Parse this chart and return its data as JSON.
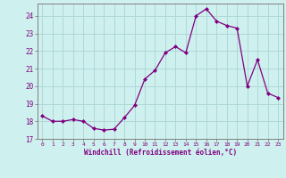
{
  "x": [
    0,
    1,
    2,
    3,
    4,
    5,
    6,
    7,
    8,
    9,
    10,
    11,
    12,
    13,
    14,
    15,
    16,
    17,
    18,
    19,
    20,
    21,
    22,
    23
  ],
  "y": [
    18.3,
    18.0,
    18.0,
    18.1,
    18.0,
    17.6,
    17.5,
    17.55,
    18.2,
    18.9,
    20.4,
    20.9,
    21.9,
    22.25,
    21.9,
    24.0,
    24.4,
    23.7,
    23.45,
    23.3,
    20.0,
    21.5,
    19.6,
    19.35
  ],
  "line_color": "#800080",
  "marker": "D",
  "markersize": 2.0,
  "linewidth": 0.9,
  "xlabel": "Windchill (Refroidissement éolien,°C)",
  "xlim": [
    -0.5,
    23.5
  ],
  "ylim": [
    17.0,
    24.7
  ],
  "yticks": [
    17,
    18,
    19,
    20,
    21,
    22,
    23,
    24
  ],
  "xticks": [
    0,
    1,
    2,
    3,
    4,
    5,
    6,
    7,
    8,
    9,
    10,
    11,
    12,
    13,
    14,
    15,
    16,
    17,
    18,
    19,
    20,
    21,
    22,
    23
  ],
  "bg_color": "#cef0ee",
  "grid_color": "#b0d8d8",
  "tick_color": "#800080",
  "label_color": "#800080",
  "spine_color": "#808080"
}
